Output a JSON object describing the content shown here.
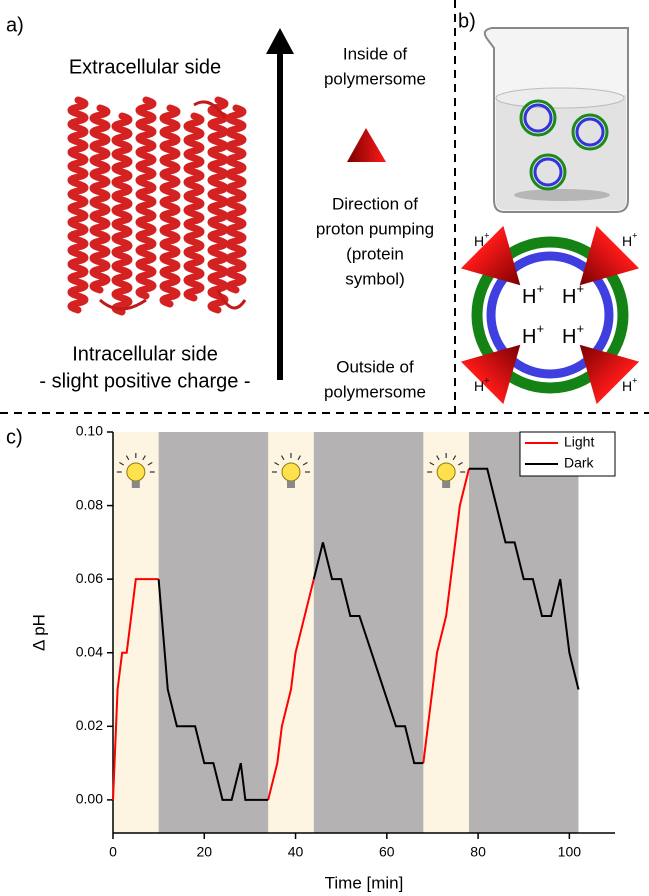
{
  "panel_a": {
    "label": "a)",
    "top_side": "Extracellular side",
    "bottom_side": [
      "Intracellular side",
      "- slight positive charge -"
    ],
    "inside": [
      "Inside of",
      "polymersome"
    ],
    "direction": [
      "Direction of",
      "proton pumping",
      "(protein",
      "symbol)"
    ],
    "outside": [
      "Outside of",
      "polymersome"
    ]
  },
  "panel_b": {
    "label": "b)",
    "outer_protons": [
      {
        "base": "H",
        "sup": "+"
      },
      {
        "base": "H",
        "sup": "+"
      },
      {
        "base": "H",
        "sup": "+"
      },
      {
        "base": "H",
        "sup": "+"
      }
    ],
    "inner_protons": [
      {
        "base": "H",
        "sup": "+"
      },
      {
        "base": "H",
        "sup": "+"
      },
      {
        "base": "H",
        "sup": "+"
      },
      {
        "base": "H",
        "sup": "+"
      }
    ]
  },
  "chart_data": {
    "type": "line",
    "panel_label": "c)",
    "x_label": "Time [min]",
    "y_label": "Δ pH",
    "xlim": [
      0,
      110
    ],
    "ylim": [
      -0.009,
      0.1
    ],
    "xticks": [
      0,
      20,
      40,
      60,
      80,
      100
    ],
    "yticks": [
      {
        "value": 0,
        "label": "0.00"
      },
      {
        "value": 0.02,
        "label": "0.02"
      },
      {
        "value": 0.04,
        "label": "0.04"
      },
      {
        "value": 0.06,
        "label": "0.06"
      },
      {
        "value": 0.08,
        "label": "0.08"
      },
      {
        "value": 0.1,
        "label": "0.10"
      }
    ],
    "light_periods": [
      [
        0,
        10
      ],
      [
        34,
        44
      ],
      [
        68,
        78
      ]
    ],
    "light_color": "#fdf5e2",
    "dark_periods": [
      [
        10,
        34
      ],
      [
        44,
        68
      ],
      [
        78,
        102
      ]
    ],
    "dark_color": "#b4b2b3",
    "legend": "top-right",
    "series": [
      {
        "name": "Light",
        "color": "#ff0000",
        "x": [
          0,
          1,
          2,
          3,
          4,
          5,
          10,
          null,
          34,
          36,
          37,
          39,
          40,
          42,
          44,
          null,
          68,
          70,
          71,
          73,
          74,
          76,
          78
        ],
        "values": [
          0,
          0.03,
          0.04,
          0.04,
          0.05,
          0.06,
          0.06,
          null,
          0,
          0.01,
          0.02,
          0.03,
          0.04,
          0.05,
          0.06,
          null,
          0.01,
          0.03,
          0.04,
          0.05,
          0.06,
          0.08,
          0.09
        ]
      },
      {
        "name": "Dark",
        "color": "#000000",
        "x": [
          10,
          12,
          14,
          18,
          20,
          22,
          24,
          26,
          28,
          29,
          34,
          null,
          44,
          46,
          48,
          50,
          52,
          54,
          62,
          64,
          66,
          68,
          null,
          78,
          82,
          86,
          88,
          90,
          92,
          94,
          96,
          98,
          100,
          102
        ],
        "values": [
          0.06,
          0.03,
          0.02,
          0.02,
          0.01,
          0.01,
          0,
          0,
          0.01,
          0,
          0,
          null,
          0.06,
          0.07,
          0.06,
          0.06,
          0.05,
          0.05,
          0.02,
          0.02,
          0.01,
          0.01,
          null,
          0.09,
          0.09,
          0.07,
          0.07,
          0.06,
          0.06,
          0.05,
          0.05,
          0.06,
          0.04,
          0.03
        ]
      }
    ]
  }
}
